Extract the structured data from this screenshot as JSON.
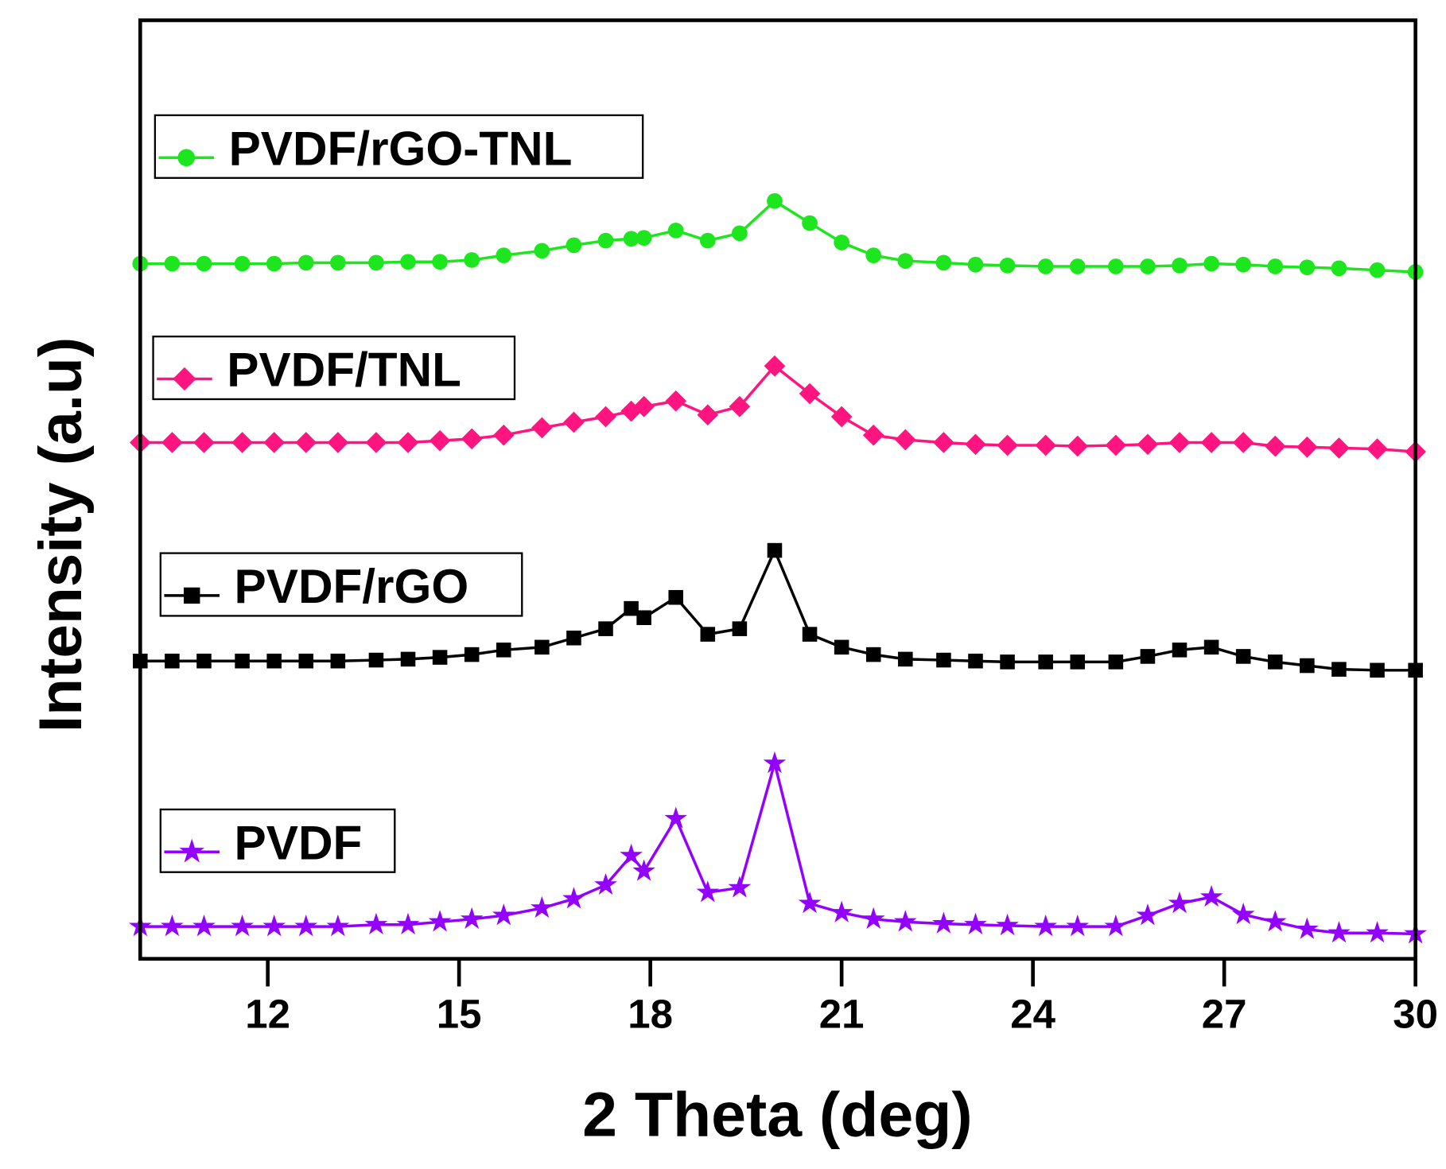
{
  "chart_data": {
    "type": "line",
    "title": "",
    "xlabel": "2 Theta (deg)",
    "ylabel": "Intensity (a.u)",
    "xlim": [
      10,
      30
    ],
    "ylim": [
      0,
      1018
    ],
    "xticks": [
      "12",
      "15",
      "18",
      "21",
      "24",
      "27",
      "30"
    ],
    "xtick_values": [
      12,
      15,
      18,
      21,
      24,
      27,
      30
    ],
    "grid": false,
    "x": [
      10,
      10.5,
      11,
      11.6,
      12.1,
      12.6,
      13.1,
      13.7,
      14.2,
      14.7,
      15.2,
      15.7,
      16.3,
      16.8,
      17.3,
      17.7,
      17.9,
      18.4,
      18.9,
      19.4,
      19.95,
      20.5,
      21,
      21.5,
      22,
      22.6,
      23.1,
      23.6,
      24.2,
      24.7,
      25.3,
      25.8,
      26.3,
      26.8,
      27.3,
      27.8,
      28.3,
      28.8,
      29.4,
      30
    ],
    "series": [
      {
        "name": "PVDF/rGO-TNL",
        "color": "#1ee61e",
        "marker": "circle",
        "values": [
          754,
          754,
          754,
          754,
          754,
          755,
          755,
          755,
          756,
          756,
          758,
          763,
          768,
          774,
          779,
          781,
          782,
          790,
          779,
          787,
          822,
          798,
          777,
          763,
          757,
          755,
          753,
          752,
          751,
          751,
          751,
          751,
          752,
          754,
          753,
          751,
          750,
          749,
          747,
          745
        ]
      },
      {
        "name": "PVDF/TNL",
        "color": "#ff1480",
        "marker": "diamond",
        "values": [
          560,
          560,
          560,
          560,
          560,
          560,
          560,
          560,
          560,
          562,
          564,
          568,
          576,
          582,
          588,
          594,
          599,
          605,
          590,
          599,
          643,
          613,
          588,
          568,
          563,
          560,
          558,
          557,
          557,
          556,
          557,
          558,
          560,
          560,
          560,
          556,
          555,
          554,
          553,
          550
        ]
      },
      {
        "name": "PVDF/rGO",
        "color": "#000000",
        "marker": "square",
        "values": [
          323,
          323,
          323,
          323,
          323,
          323,
          323,
          324,
          325,
          327,
          330,
          335,
          338,
          348,
          358,
          380,
          370,
          392,
          352,
          358,
          443,
          352,
          338,
          330,
          325,
          324,
          323,
          322,
          322,
          322,
          322,
          328,
          335,
          338,
          328,
          322,
          318,
          314,
          313,
          313
        ]
      },
      {
        "name": "PVDF",
        "color": "#9400ff",
        "marker": "star",
        "values": [
          35,
          35,
          35,
          35,
          35,
          35,
          35,
          37,
          37,
          40,
          43,
          47,
          55,
          65,
          80,
          112,
          95,
          152,
          72,
          77,
          212,
          60,
          50,
          43,
          40,
          38,
          37,
          36,
          35,
          35,
          35,
          47,
          60,
          67,
          48,
          40,
          32,
          28,
          28,
          27
        ]
      }
    ],
    "legend_placement": "per-series, left"
  }
}
